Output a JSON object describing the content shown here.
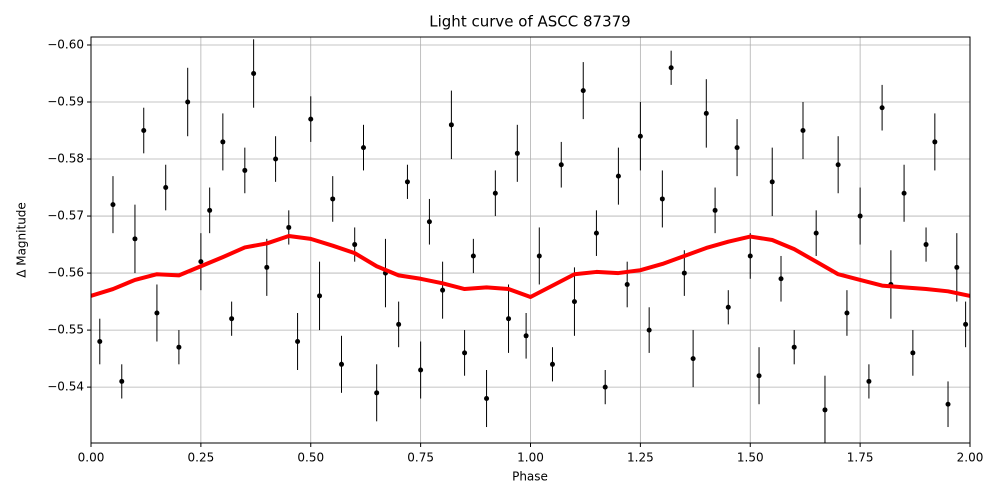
{
  "chart_data": {
    "type": "errorbar-scatter",
    "title": "Light curve of ASCC 87379",
    "x_label": "Phase",
    "y_label": "Δ Magnitude",
    "xlim": [
      0,
      2
    ],
    "ylim": [
      -0.5302,
      -0.6014
    ],
    "xticks": [
      {
        "value": 0,
        "label": "0.00"
      },
      {
        "value": 0.25,
        "label": "0.25"
      },
      {
        "value": 0.5,
        "label": "0.50"
      },
      {
        "value": 0.75,
        "label": "0.75"
      },
      {
        "value": 1,
        "label": "1.00"
      },
      {
        "value": 1.25,
        "label": "1.25"
      },
      {
        "value": 1.5,
        "label": "1.50"
      },
      {
        "value": 1.75,
        "label": "1.75"
      },
      {
        "value": 2,
        "label": "2.00"
      }
    ],
    "yticks": [
      {
        "value": -0.54,
        "label": "−0.54"
      },
      {
        "value": -0.55,
        "label": "−0.55"
      },
      {
        "value": -0.56,
        "label": "−0.56"
      },
      {
        "value": -0.57,
        "label": "−0.57"
      },
      {
        "value": -0.58,
        "label": "−0.58"
      },
      {
        "value": -0.59,
        "label": "−0.59"
      },
      {
        "value": -0.6,
        "label": "−0.60"
      }
    ],
    "grid": true,
    "points": {
      "color": "#000000",
      "x": [
        0.02,
        0.05,
        0.07,
        0.1,
        0.12,
        0.15,
        0.17,
        0.2,
        0.22,
        0.25,
        0.27,
        0.3,
        0.32,
        0.35,
        0.37,
        0.4,
        0.42,
        0.45,
        0.47,
        0.5,
        0.52,
        0.55,
        0.57,
        0.6,
        0.62,
        0.65,
        0.67,
        0.7,
        0.72,
        0.75,
        0.77,
        0.8,
        0.82,
        0.85,
        0.87,
        0.9,
        0.92,
        0.95,
        0.97,
        0.99,
        1.02,
        1.05,
        1.07,
        1.1,
        1.12,
        1.15,
        1.17,
        1.2,
        1.22,
        1.25,
        1.27,
        1.3,
        1.32,
        1.35,
        1.37,
        1.4,
        1.42,
        1.45,
        1.47,
        1.5,
        1.52,
        1.55,
        1.57,
        1.6,
        1.62,
        1.65,
        1.67,
        1.7,
        1.72,
        1.75,
        1.77,
        1.8,
        1.82,
        1.85,
        1.87,
        1.9,
        1.92,
        1.95,
        1.97,
        1.99
      ],
      "values": [
        -0.548,
        -0.572,
        -0.541,
        -0.566,
        -0.585,
        -0.553,
        -0.575,
        -0.547,
        -0.59,
        -0.562,
        -0.571,
        -0.583,
        -0.552,
        -0.578,
        -0.595,
        -0.561,
        -0.58,
        -0.568,
        -0.548,
        -0.587,
        -0.556,
        -0.573,
        -0.544,
        -0.565,
        -0.582,
        -0.539,
        -0.56,
        -0.551,
        -0.576,
        -0.543,
        -0.569,
        -0.557,
        -0.586,
        -0.546,
        -0.563,
        -0.538,
        -0.574,
        -0.552,
        -0.581,
        -0.549,
        -0.563,
        -0.544,
        -0.579,
        -0.555,
        -0.592,
        -0.567,
        -0.54,
        -0.577,
        -0.558,
        -0.584,
        -0.55,
        -0.573,
        -0.596,
        -0.56,
        -0.545,
        -0.588,
        -0.571,
        -0.554,
        -0.582,
        -0.563,
        -0.542,
        -0.576,
        -0.559,
        -0.547,
        -0.585,
        -0.567,
        -0.536,
        -0.579,
        -0.553,
        -0.57,
        -0.541,
        -0.589,
        -0.558,
        -0.574,
        -0.546,
        -0.565,
        -0.583,
        -0.537,
        -0.561,
        -0.551
      ],
      "errors": [
        0.004,
        0.005,
        0.003,
        0.006,
        0.004,
        0.005,
        0.004,
        0.003,
        0.006,
        0.005,
        0.004,
        0.005,
        0.003,
        0.004,
        0.006,
        0.005,
        0.004,
        0.003,
        0.005,
        0.004,
        0.006,
        0.004,
        0.005,
        0.003,
        0.004,
        0.005,
        0.006,
        0.004,
        0.003,
        0.005,
        0.004,
        0.005,
        0.006,
        0.004,
        0.003,
        0.005,
        0.004,
        0.006,
        0.005,
        0.004,
        0.005,
        0.003,
        0.004,
        0.006,
        0.005,
        0.004,
        0.003,
        0.005,
        0.004,
        0.006,
        0.004,
        0.005,
        0.003,
        0.004,
        0.005,
        0.006,
        0.004,
        0.003,
        0.005,
        0.004,
        0.005,
        0.006,
        0.004,
        0.003,
        0.005,
        0.004,
        0.006,
        0.005,
        0.004,
        0.005,
        0.003,
        0.004,
        0.006,
        0.005,
        0.004,
        0.003,
        0.005,
        0.004,
        0.006,
        0.004
      ]
    },
    "curve": {
      "color": "#ff0000",
      "x": [
        0,
        0.05,
        0.1,
        0.15,
        0.2,
        0.25,
        0.3,
        0.35,
        0.4,
        0.45,
        0.5,
        0.55,
        0.6,
        0.65,
        0.7,
        0.75,
        0.8,
        0.85,
        0.9,
        0.95,
        1,
        1.05,
        1.1,
        1.15,
        1.2,
        1.25,
        1.3,
        1.35,
        1.4,
        1.45,
        1.5,
        1.55,
        1.6,
        1.65,
        1.7,
        1.75,
        1.8,
        1.85,
        1.9,
        1.95,
        2
      ],
      "values": [
        -0.556,
        -0.5572,
        -0.5588,
        -0.5598,
        -0.5596,
        -0.5612,
        -0.5628,
        -0.5645,
        -0.5652,
        -0.5665,
        -0.566,
        -0.5648,
        -0.5635,
        -0.5612,
        -0.5596,
        -0.559,
        -0.5582,
        -0.5572,
        -0.5575,
        -0.5572,
        -0.5558,
        -0.5578,
        -0.5598,
        -0.5602,
        -0.56,
        -0.5605,
        -0.5616,
        -0.563,
        -0.5644,
        -0.5655,
        -0.5664,
        -0.5658,
        -0.5642,
        -0.562,
        -0.5598,
        -0.5588,
        -0.5578,
        -0.5575,
        -0.5572,
        -0.5568,
        -0.556
      ]
    }
  }
}
